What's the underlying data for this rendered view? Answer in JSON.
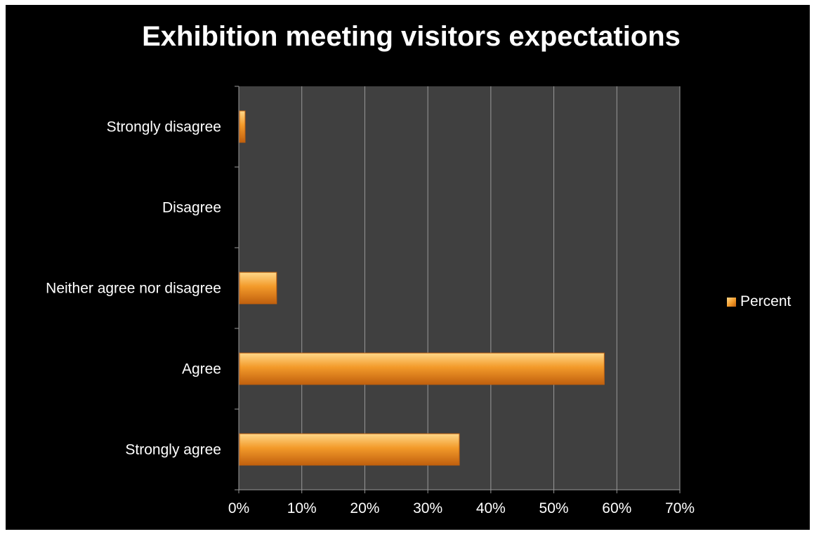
{
  "chart_data": {
    "type": "bar",
    "orientation": "horizontal",
    "title": "Exhibition meeting visitors expectations",
    "categories": [
      "Strongly disagree",
      "Disagree",
      "Neither agree nor disagree",
      "Agree",
      "Strongly agree"
    ],
    "series": [
      {
        "name": "Percent",
        "values": [
          1,
          0,
          6,
          58,
          35
        ]
      }
    ],
    "xlabel": "",
    "ylabel": "",
    "xlim": [
      0,
      70
    ],
    "x_ticks": [
      "0%",
      "10%",
      "20%",
      "30%",
      "40%",
      "50%",
      "60%",
      "70%"
    ],
    "grid": "vertical",
    "legend_position": "right",
    "colors": {
      "background": "#000000",
      "plot_area": "#404040",
      "bar": "#f39a2a",
      "bar_highlight": "#ffd88a",
      "bar_shadow": "#c0600e",
      "gridline": "#9a9a9a",
      "text": "#ffffff"
    }
  }
}
